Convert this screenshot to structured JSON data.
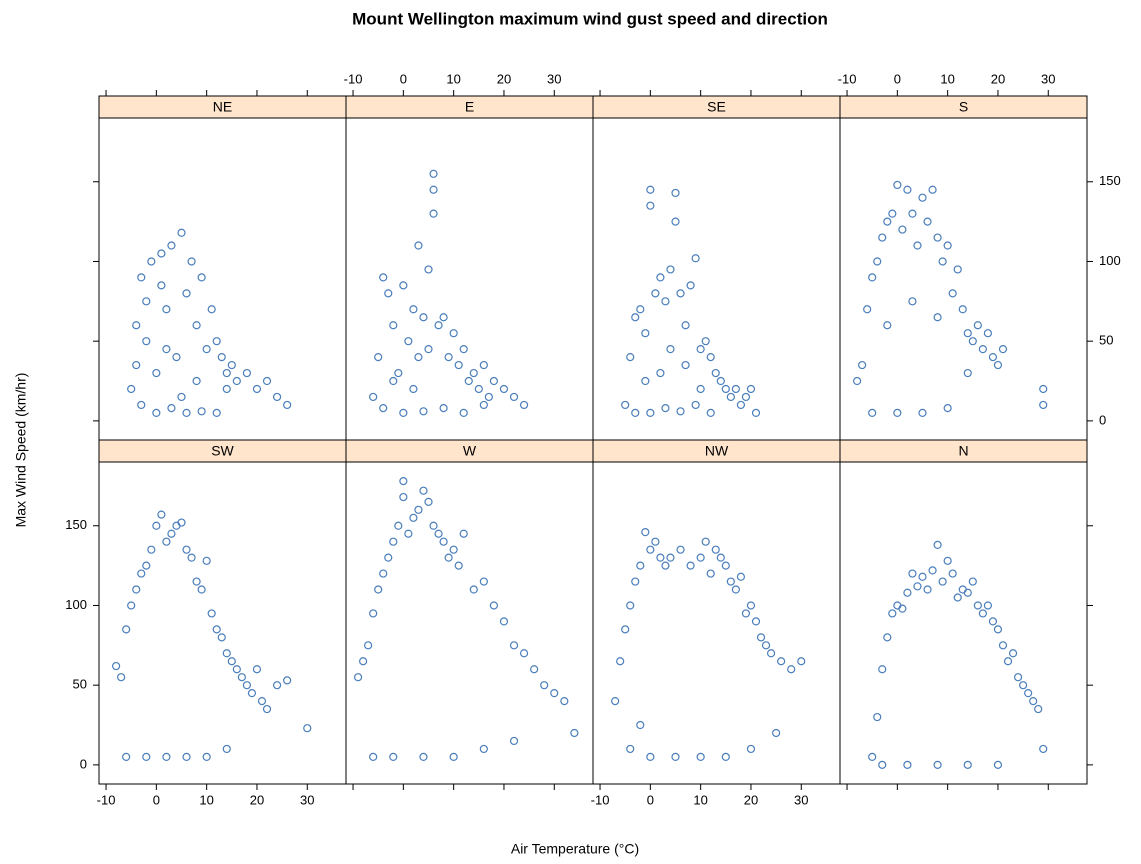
{
  "chart_data": {
    "type": "scatter",
    "title": "Mount Wellington maximum wind gust speed and direction",
    "xlabel": "Air Temperature (°C)",
    "ylabel": "Max Wind Speed (km/hr)",
    "xlim": [
      -11.4,
      37.7
    ],
    "ylim": [
      -12,
      190
    ],
    "xticks": [
      -10,
      0,
      10,
      20,
      30
    ],
    "yticks": [
      0,
      50,
      100,
      150
    ],
    "color": "#4a7ebb",
    "panels": [
      {
        "name": "NE",
        "x": [
          -5,
          -4,
          -3,
          -2,
          -1,
          0,
          1,
          2,
          3,
          4,
          5,
          6,
          7,
          8,
          9,
          10,
          11,
          12,
          13,
          14,
          15,
          16,
          18,
          20,
          22,
          24,
          26,
          -3,
          0,
          3,
          6,
          9,
          12,
          -4,
          2,
          8,
          14,
          5,
          1,
          -2
        ],
        "y": [
          20,
          60,
          90,
          50,
          100,
          30,
          105,
          70,
          110,
          40,
          118,
          80,
          100,
          60,
          90,
          45,
          70,
          50,
          40,
          30,
          35,
          25,
          30,
          20,
          25,
          15,
          10,
          10,
          5,
          8,
          5,
          6,
          5,
          35,
          45,
          25,
          20,
          15,
          85,
          75
        ]
      },
      {
        "name": "E",
        "x": [
          -6,
          -5,
          -4,
          -3,
          -2,
          -1,
          0,
          1,
          2,
          3,
          3,
          4,
          5,
          6,
          6,
          6,
          7,
          8,
          9,
          10,
          11,
          12,
          13,
          14,
          15,
          16,
          17,
          18,
          20,
          22,
          24,
          -4,
          0,
          4,
          8,
          12,
          16,
          2,
          -2,
          5
        ],
        "y": [
          15,
          40,
          90,
          80,
          60,
          30,
          85,
          50,
          70,
          110,
          40,
          65,
          95,
          155,
          145,
          130,
          60,
          65,
          40,
          55,
          35,
          45,
          25,
          30,
          20,
          35,
          15,
          25,
          20,
          15,
          10,
          8,
          5,
          6,
          8,
          5,
          10,
          20,
          25,
          45
        ]
      },
      {
        "name": "SE",
        "x": [
          -5,
          -4,
          -3,
          -2,
          -1,
          0,
          0,
          1,
          2,
          3,
          4,
          5,
          5,
          6,
          7,
          8,
          9,
          10,
          11,
          12,
          13,
          14,
          15,
          16,
          17,
          18,
          19,
          20,
          21,
          -3,
          0,
          3,
          6,
          9,
          12,
          -1,
          2,
          4,
          7,
          10
        ],
        "y": [
          10,
          40,
          65,
          70,
          55,
          145,
          135,
          80,
          90,
          75,
          95,
          143,
          125,
          80,
          60,
          85,
          102,
          45,
          50,
          40,
          30,
          25,
          20,
          15,
          20,
          10,
          15,
          20,
          5,
          5,
          5,
          8,
          6,
          10,
          5,
          25,
          30,
          45,
          35,
          20
        ]
      },
      {
        "name": "S",
        "x": [
          -8,
          -7,
          -6,
          -5,
          -4,
          -3,
          -2,
          -1,
          0,
          1,
          2,
          3,
          4,
          5,
          6,
          7,
          8,
          9,
          10,
          11,
          12,
          13,
          14,
          15,
          16,
          17,
          18,
          19,
          20,
          21,
          29,
          29,
          -5,
          0,
          5,
          10,
          -2,
          3,
          8,
          14
        ],
        "y": [
          25,
          35,
          70,
          90,
          100,
          115,
          125,
          130,
          148,
          120,
          145,
          130,
          110,
          140,
          125,
          145,
          115,
          100,
          110,
          80,
          95,
          70,
          55,
          50,
          60,
          45,
          55,
          40,
          35,
          45,
          20,
          10,
          5,
          5,
          5,
          8,
          60,
          75,
          65,
          30
        ]
      },
      {
        "name": "SW",
        "x": [
          -8,
          -7,
          -6,
          -5,
          -4,
          -3,
          -2,
          -1,
          0,
          1,
          2,
          3,
          4,
          5,
          6,
          7,
          8,
          9,
          10,
          11,
          12,
          13,
          14,
          15,
          16,
          17,
          18,
          19,
          20,
          21,
          22,
          24,
          26,
          30,
          -6,
          -2,
          2,
          6,
          10,
          14
        ],
        "y": [
          62,
          55,
          85,
          100,
          110,
          120,
          125,
          135,
          150,
          157,
          140,
          145,
          150,
          152,
          135,
          130,
          115,
          110,
          128,
          95,
          85,
          80,
          70,
          65,
          60,
          55,
          50,
          45,
          60,
          40,
          35,
          50,
          53,
          23,
          5,
          5,
          5,
          5,
          5,
          10
        ]
      },
      {
        "name": "W",
        "x": [
          -9,
          -8,
          -7,
          -6,
          -5,
          -4,
          -3,
          -2,
          -1,
          0,
          0,
          1,
          2,
          3,
          4,
          5,
          6,
          7,
          8,
          9,
          10,
          11,
          12,
          14,
          16,
          18,
          20,
          22,
          24,
          26,
          28,
          30,
          32,
          34,
          -6,
          -2,
          4,
          10,
          16,
          22
        ],
        "y": [
          55,
          65,
          75,
          95,
          110,
          120,
          130,
          140,
          150,
          178,
          168,
          145,
          155,
          160,
          172,
          165,
          150,
          145,
          140,
          130,
          135,
          125,
          145,
          110,
          115,
          100,
          90,
          75,
          70,
          60,
          50,
          45,
          40,
          20,
          5,
          5,
          5,
          5,
          10,
          15
        ]
      },
      {
        "name": "NW",
        "x": [
          -7,
          -6,
          -5,
          -4,
          -3,
          -2,
          -1,
          0,
          1,
          2,
          3,
          4,
          6,
          8,
          10,
          11,
          12,
          13,
          14,
          15,
          16,
          17,
          18,
          19,
          20,
          21,
          22,
          23,
          24,
          26,
          28,
          30,
          -4,
          0,
          5,
          10,
          15,
          20,
          25,
          -2
        ],
        "y": [
          40,
          65,
          85,
          100,
          115,
          125,
          146,
          135,
          140,
          130,
          125,
          130,
          135,
          125,
          130,
          140,
          120,
          135,
          130,
          125,
          115,
          110,
          118,
          95,
          100,
          90,
          80,
          75,
          70,
          65,
          60,
          65,
          10,
          5,
          5,
          5,
          5,
          10,
          20,
          25
        ]
      },
      {
        "name": "N",
        "x": [
          -5,
          -4,
          -3,
          -2,
          -1,
          0,
          1,
          2,
          3,
          4,
          5,
          6,
          7,
          8,
          9,
          10,
          11,
          12,
          13,
          14,
          15,
          16,
          17,
          18,
          19,
          20,
          21,
          22,
          23,
          24,
          25,
          26,
          27,
          28,
          29,
          -3,
          2,
          8,
          14,
          20
        ],
        "y": [
          5,
          30,
          60,
          80,
          95,
          100,
          98,
          108,
          120,
          112,
          118,
          110,
          122,
          138,
          115,
          128,
          120,
          105,
          110,
          108,
          115,
          100,
          95,
          100,
          90,
          85,
          75,
          65,
          70,
          55,
          50,
          45,
          40,
          35,
          10,
          0,
          0,
          0,
          0,
          0
        ]
      }
    ]
  }
}
